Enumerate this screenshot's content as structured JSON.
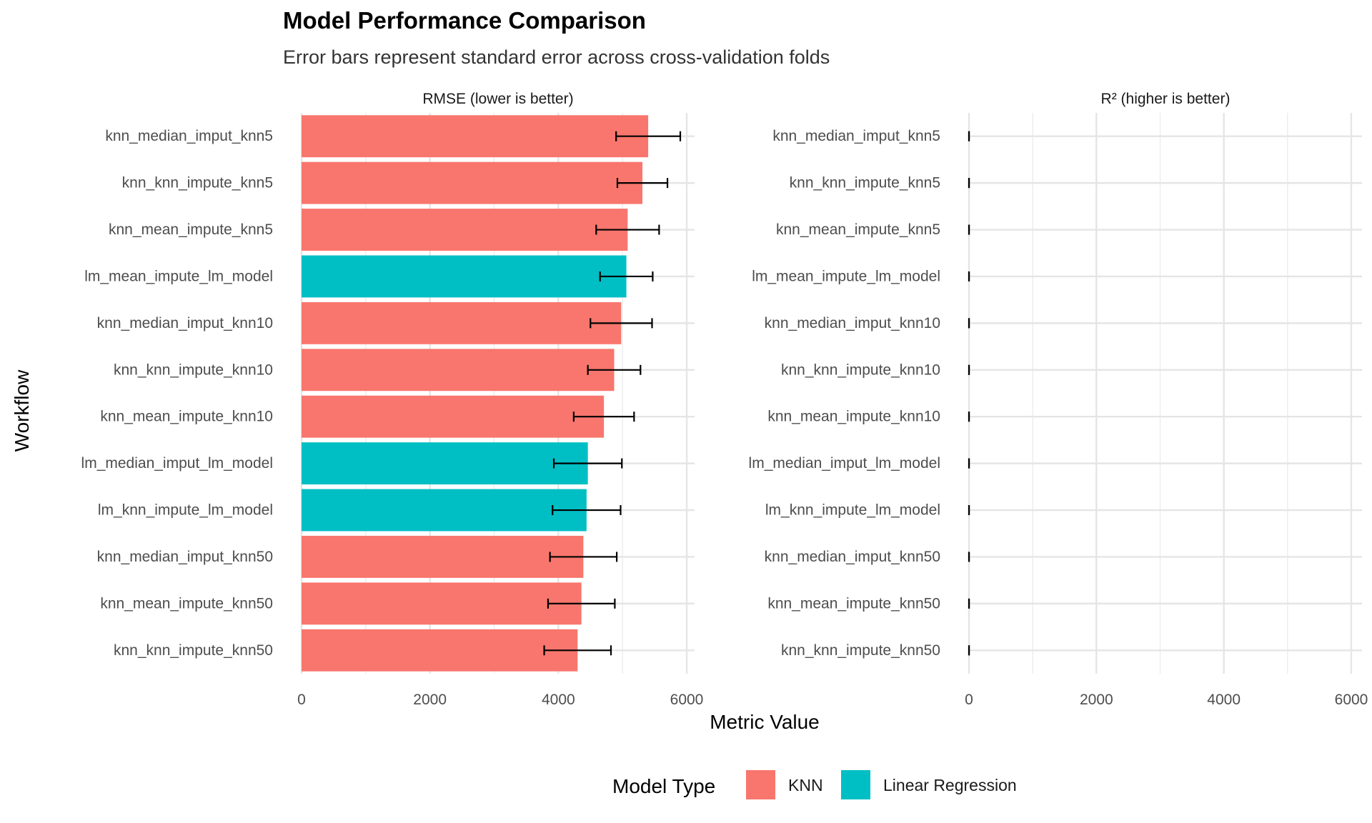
{
  "chart_data": {
    "type": "bar",
    "orientation": "horizontal",
    "title": "Model Performance Comparison",
    "subtitle": "Error bars represent standard error across cross-validation folds",
    "xlabel": "Metric Value",
    "ylabel": "Workflow",
    "xlim": [
      0,
      6000
    ],
    "x_ticks": [
      0,
      2000,
      4000,
      6000
    ],
    "x_tick_labels": [
      "0",
      "2000",
      "4000",
      "6000"
    ],
    "grid": true,
    "legend": {
      "title": "Model Type",
      "position": "bottom",
      "entries": [
        {
          "name": "KNN",
          "color": "#F8766D"
        },
        {
          "name": "Linear Regression",
          "color": "#00BFC4"
        }
      ]
    },
    "categories": [
      "knn_median_imput_knn5",
      "knn_knn_impute_knn5",
      "knn_mean_impute_knn5",
      "lm_mean_impute_lm_model",
      "knn_median_imput_knn10",
      "knn_knn_impute_knn10",
      "knn_mean_impute_knn10",
      "lm_median_imput_lm_model",
      "lm_knn_impute_lm_model",
      "knn_median_imput_knn50",
      "knn_mean_impute_knn50",
      "knn_knn_impute_knn50"
    ],
    "model_type": [
      "KNN",
      "KNN",
      "KNN",
      "Linear Regression",
      "KNN",
      "KNN",
      "KNN",
      "Linear Regression",
      "Linear Regression",
      "KNN",
      "KNN",
      "KNN"
    ],
    "panels": [
      {
        "strip": "RMSE (lower is better)",
        "values": [
          5400,
          5310,
          5080,
          5060,
          4980,
          4870,
          4710,
          4460,
          4440,
          4390,
          4360,
          4300
        ],
        "se": [
          500,
          390,
          490,
          410,
          480,
          410,
          470,
          530,
          530,
          520,
          520,
          520
        ]
      },
      {
        "strip": "R² (higher is better)",
        "values": [
          0.35,
          0.35,
          0.36,
          0.37,
          0.37,
          0.39,
          0.4,
          0.42,
          0.42,
          0.43,
          0.43,
          0.44
        ],
        "se": [
          0.03,
          0.03,
          0.03,
          0.03,
          0.03,
          0.03,
          0.03,
          0.03,
          0.03,
          0.03,
          0.03,
          0.03
        ]
      }
    ]
  }
}
